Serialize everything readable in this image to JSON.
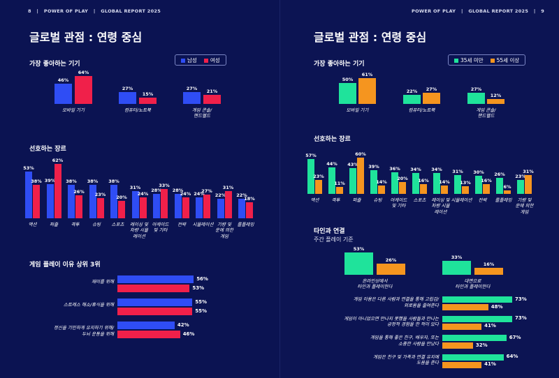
{
  "left_page": {
    "header": "8   |   POWER OF PLAY   |   GLOBAL REPORT 2025",
    "title": "글로벌 관점 : 연령 중심",
    "legend": [
      {
        "label": "남성",
        "color": "#2f4df5"
      },
      {
        "label": "여성",
        "color": "#f0204a"
      }
    ]
  },
  "right_page": {
    "header": "POWER OF PLAY   |   GLOBAL REPORT 2025   |   9",
    "title": "글로벌 관점 : 연령 중심",
    "legend": [
      {
        "label": "35세 미만",
        "color": "#1fe39b"
      },
      {
        "label": "55세 이상",
        "color": "#f5951f"
      }
    ],
    "connection_subtitle": "주간 플레이 기준"
  },
  "chart_data": [
    {
      "id": "devices_gender",
      "type": "bar",
      "title": "가장 좋아하는 기기",
      "categories": [
        "모바일 기기",
        "컴퓨터/노트북",
        "게임 콘솔/\n핸드헬드"
      ],
      "series": [
        {
          "name": "남성",
          "values": [
            46,
            27,
            27
          ]
        },
        {
          "name": "여성",
          "values": [
            64,
            15,
            21
          ]
        }
      ],
      "unit": "%"
    },
    {
      "id": "genres_gender",
      "type": "bar",
      "title": "선호하는 장르",
      "categories": [
        "액션",
        "퍼즐",
        "격투",
        "슈팅",
        "스포츠",
        "레이싱 및\n차량 시뮬\n레이션",
        "아케이드\n및 기타",
        "전략",
        "시뮬레이션",
        "기량 및\n운에 의한\n게임",
        "롤플레잉"
      ],
      "series": [
        {
          "name": "남성",
          "values": [
            53,
            39,
            38,
            38,
            38,
            31,
            28,
            28,
            24,
            22,
            22
          ]
        },
        {
          "name": "여성",
          "values": [
            38,
            62,
            26,
            23,
            20,
            24,
            33,
            24,
            27,
            31,
            18
          ]
        }
      ],
      "unit": "%"
    },
    {
      "id": "reasons_gender",
      "type": "bar",
      "orientation": "horizontal",
      "title": "게임 플레이 이유 상위 3위",
      "categories": [
        "재미를 위해",
        "스트레스 해소/휴식을 위해",
        "정신을 기민하게 유지하기 위해/\n두뇌 운동을 위해"
      ],
      "series": [
        {
          "name": "남성",
          "values": [
            56,
            55,
            42
          ]
        },
        {
          "name": "여성",
          "values": [
            53,
            55,
            46
          ]
        }
      ],
      "unit": "%"
    },
    {
      "id": "devices_age",
      "type": "bar",
      "title": "가장 좋아하는 기기",
      "categories": [
        "모바일 기기",
        "컴퓨터/노트북",
        "게임 콘솔/\n핸드헬드"
      ],
      "series": [
        {
          "name": "35세 미만",
          "values": [
            50,
            22,
            27
          ]
        },
        {
          "name": "55세 이상",
          "values": [
            61,
            27,
            12
          ]
        }
      ],
      "unit": "%"
    },
    {
      "id": "genres_age",
      "type": "bar",
      "title": "선호하는 장르",
      "categories": [
        "액션",
        "격투",
        "퍼즐",
        "슈팅",
        "아케이드\n및 기타",
        "스포츠",
        "레이싱 및\n차량 시뮬\n레이션",
        "시뮬레이션",
        "전략",
        "롤플레잉",
        "기량 및\n운에 의한\n게임"
      ],
      "series": [
        {
          "name": "35세 미만",
          "values": [
            57,
            44,
            43,
            39,
            36,
            34,
            34,
            31,
            30,
            26,
            23
          ]
        },
        {
          "name": "55세 이상",
          "values": [
            23,
            11,
            60,
            14,
            20,
            16,
            14,
            13,
            16,
            6,
            31
          ]
        }
      ],
      "unit": "%"
    },
    {
      "id": "connection_age",
      "type": "bar",
      "title": "타인과 연결",
      "categories": [
        "온라인상에서\n타인과 플레이한다",
        "대면으로\n타인과 플레이한다"
      ],
      "series": [
        {
          "name": "35세 미만",
          "values": [
            53,
            33
          ]
        },
        {
          "name": "55세 이상",
          "values": [
            26,
            16
          ]
        }
      ],
      "unit": "%"
    },
    {
      "id": "connection_statements_age",
      "type": "bar",
      "orientation": "horizontal",
      "title": "",
      "categories": [
        "게임 이용은 다른 사람과 연결을 통해 고립감/\n외로움을 줄여준다",
        "게임이 아니었으면 만나지 못했을 사람들과 만나는\n긍정적 경험을 한 적이 있다",
        "게임을 통해 좋은 친구, 배우자, 또는\n소중한 사람을 만났다",
        "게임은 친구 및 가족과 연결 유지에\n도움을 준다"
      ],
      "series": [
        {
          "name": "35세 미만",
          "values": [
            73,
            73,
            67,
            64
          ]
        },
        {
          "name": "55세 이상",
          "values": [
            48,
            41,
            32,
            41
          ]
        }
      ],
      "unit": "%"
    }
  ]
}
